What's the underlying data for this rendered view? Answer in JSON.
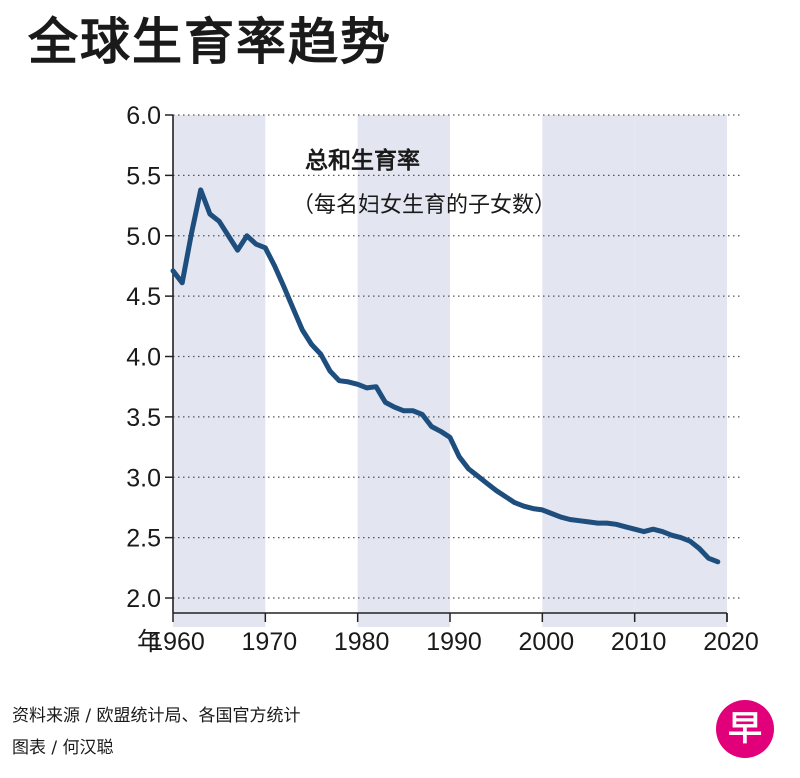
{
  "chart_data": {
    "type": "line",
    "title": "全球生育率趋势",
    "series_title": "总和生育率",
    "series_subtitle": "（每名妇女生育的子女数）",
    "xlabel": "年",
    "ylabel": "",
    "xlim": [
      1960,
      2020
    ],
    "ylim": [
      2.0,
      6.0
    ],
    "x_ticks": [
      1960,
      1970,
      1980,
      1990,
      2000,
      2010,
      2020
    ],
    "y_ticks": [
      "2.0",
      "2.5",
      "3.0",
      "3.5",
      "4.0",
      "4.5",
      "5.0",
      "5.5",
      "6.0"
    ],
    "grid": "horizontal dotted",
    "shaded_decades": [
      [
        1960,
        1970
      ],
      [
        1980,
        1990
      ],
      [
        2000,
        2010
      ]
    ],
    "line_color": "#1d4e7e",
    "band_color": "#e3e5f0",
    "series": [
      {
        "x": [
          1960,
          1961,
          1962,
          1963,
          1964,
          1965,
          1966,
          1967,
          1968,
          1969,
          1970,
          1971,
          1972,
          1973,
          1974,
          1975,
          1976,
          1977,
          1978,
          1979,
          1980,
          1981,
          1982,
          1983,
          1984,
          1985,
          1986,
          1987,
          1988,
          1989,
          1990,
          1991,
          1992,
          1993,
          1994,
          1995,
          1996,
          1997,
          1998,
          1999,
          2000,
          2001,
          2002,
          2003,
          2004,
          2005,
          2006,
          2007,
          2008,
          2009,
          2010,
          2011,
          2012,
          2013,
          2014,
          2015,
          2016,
          2017,
          2018,
          2019
        ],
        "y": [
          4.71,
          4.61,
          5.02,
          5.38,
          5.18,
          5.12,
          5.0,
          4.88,
          5.0,
          4.93,
          4.9,
          4.75,
          4.58,
          4.4,
          4.22,
          4.1,
          4.02,
          3.88,
          3.8,
          3.79,
          3.77,
          3.74,
          3.75,
          3.62,
          3.58,
          3.55,
          3.55,
          3.52,
          3.42,
          3.38,
          3.33,
          3.17,
          3.07,
          3.01,
          2.95,
          2.89,
          2.84,
          2.79,
          2.76,
          2.74,
          2.73,
          2.7,
          2.67,
          2.65,
          2.64,
          2.63,
          2.62,
          2.62,
          2.61,
          2.59,
          2.57,
          2.55,
          2.57,
          2.55,
          2.52,
          2.5,
          2.47,
          2.41,
          2.33,
          2.3
        ]
      }
    ]
  },
  "footer": {
    "source": "资料来源 / 欧盟统计局、各国官方统计",
    "credit": "图表 / 何汉聪"
  },
  "logo": {
    "glyph": "早",
    "color": "#e2007a"
  }
}
